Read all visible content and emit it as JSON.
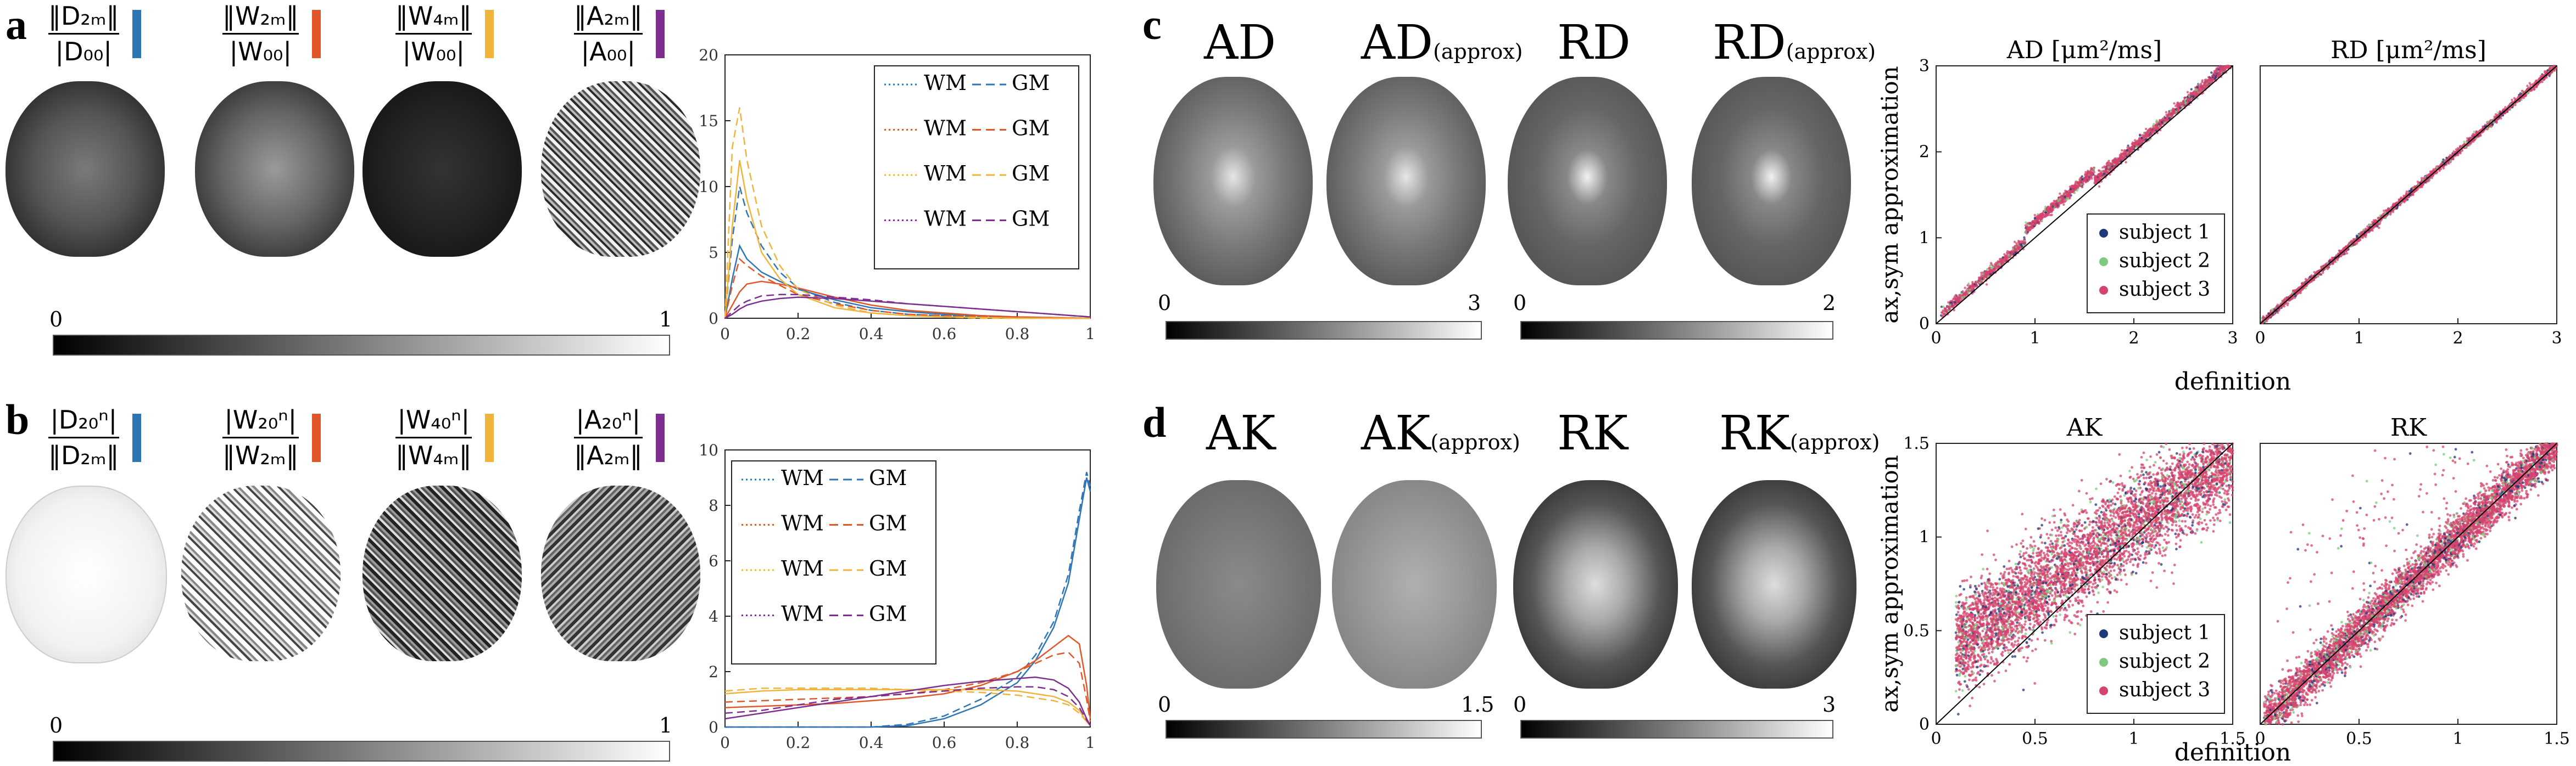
{
  "panels": {
    "a": {
      "label": "a",
      "titles": [
        {
          "num": "‖D₂ₘ‖",
          "den": "|D₀₀|",
          "color": "#2e75b6"
        },
        {
          "num": "‖W₂ₘ‖",
          "den": "|W₀₀|",
          "color": "#e0582a"
        },
        {
          "num": "‖W₄ₘ‖",
          "den": "|W₀₀|",
          "color": "#f0b43c"
        },
        {
          "num": "‖A₂ₘ‖",
          "den": "|A₀₀|",
          "color": "#7d2e8e"
        }
      ],
      "colorbar": {
        "min": "0",
        "max": "1"
      }
    },
    "b": {
      "label": "b",
      "titles": [
        {
          "num": "|D₂₀ⁿ|",
          "den": "‖D₂ₘ‖",
          "color": "#2e75b6"
        },
        {
          "num": "|W₂₀ⁿ|",
          "den": "‖W₂ₘ‖",
          "color": "#e0582a"
        },
        {
          "num": "|W₄₀ⁿ|",
          "den": "‖W₄ₘ‖",
          "color": "#f0b43c"
        },
        {
          "num": "|A₂₀ⁿ|",
          "den": "‖A₂ₘ‖",
          "color": "#7d2e8e"
        }
      ],
      "colorbar": {
        "min": "0",
        "max": "1"
      }
    },
    "c": {
      "label": "c",
      "maps": [
        {
          "title": "AD",
          "sub": ""
        },
        {
          "title": "AD",
          "sub": "(approx)"
        },
        {
          "title": "RD",
          "sub": ""
        },
        {
          "title": "RD",
          "sub": "(approx)"
        }
      ],
      "colorbars": [
        {
          "min": "0",
          "max": "3"
        },
        {
          "min": "0",
          "max": "2"
        }
      ]
    },
    "d": {
      "label": "d",
      "maps": [
        {
          "title": "AK",
          "sub": ""
        },
        {
          "title": "AK",
          "sub": "(approx)"
        },
        {
          "title": "RK",
          "sub": ""
        },
        {
          "title": "RK",
          "sub": "(approx)"
        }
      ],
      "colorbars": [
        {
          "min": "0",
          "max": "1.5"
        },
        {
          "min": "0",
          "max": "3"
        }
      ]
    }
  },
  "colors": {
    "blue": "#2e75b6",
    "red": "#e0582a",
    "yellow": "#f0b43c",
    "purple": "#7d2e8e",
    "subject1": "#1f3a78",
    "subject2": "#7fc97f",
    "subject3": "#d6436e"
  },
  "chart_data": [
    {
      "id": "histA",
      "type": "line",
      "xlim": [
        0,
        1
      ],
      "ylim": [
        0,
        20
      ],
      "xticks": [
        "0",
        "0.2",
        "0.4",
        "0.6",
        "0.8",
        "1"
      ],
      "yticks": [
        "0",
        "5",
        "10",
        "15",
        "20"
      ],
      "legend": {
        "placement": "top-right",
        "wm": "WM",
        "gm": "GM"
      },
      "x": [
        0,
        0.02,
        0.04,
        0.06,
        0.1,
        0.15,
        0.2,
        0.3,
        0.4,
        0.5,
        0.6,
        0.7,
        0.8,
        0.9,
        1.0
      ],
      "series": [
        {
          "color": "#2e75b6",
          "style": "WM",
          "values": [
            0,
            3,
            5.5,
            4.5,
            3.5,
            2.8,
            2.2,
            1.4,
            0.8,
            0.5,
            0.3,
            0.2,
            0.1,
            0.05,
            0
          ]
        },
        {
          "color": "#2e75b6",
          "style": "GM",
          "values": [
            0,
            6,
            10,
            8,
            5.5,
            3.5,
            2.3,
            1.2,
            0.6,
            0.3,
            0.2,
            0.1,
            0.05,
            0,
            0
          ]
        },
        {
          "color": "#e0582a",
          "style": "WM",
          "values": [
            0,
            1,
            2,
            2.6,
            2.8,
            2.6,
            2.3,
            1.6,
            1.0,
            0.6,
            0.4,
            0.2,
            0.1,
            0.05,
            0
          ]
        },
        {
          "color": "#e0582a",
          "style": "GM",
          "values": [
            0,
            2.5,
            4.5,
            4,
            3.2,
            2.5,
            1.8,
            1.1,
            0.6,
            0.3,
            0.2,
            0.1,
            0.05,
            0,
            0
          ]
        },
        {
          "color": "#f0b43c",
          "style": "WM",
          "values": [
            0,
            7,
            12,
            9,
            5,
            3,
            1.8,
            0.8,
            0.4,
            0.2,
            0.1,
            0.05,
            0,
            0,
            0
          ]
        },
        {
          "color": "#f0b43c",
          "style": "GM",
          "values": [
            0,
            13,
            16,
            12,
            7,
            4,
            2.2,
            1,
            0.4,
            0.2,
            0.1,
            0,
            0,
            0,
            0
          ]
        },
        {
          "color": "#7d2e8e",
          "style": "WM",
          "values": [
            0,
            0.3,
            0.7,
            1.0,
            1.3,
            1.5,
            1.6,
            1.5,
            1.3,
            1.1,
            0.9,
            0.7,
            0.5,
            0.3,
            0.1
          ]
        },
        {
          "color": "#7d2e8e",
          "style": "GM",
          "values": [
            0,
            0.5,
            1.0,
            1.3,
            1.7,
            1.8,
            1.8,
            1.6,
            1.4,
            1.1,
            0.9,
            0.7,
            0.5,
            0.3,
            0.1
          ]
        }
      ]
    },
    {
      "id": "histB",
      "type": "line",
      "xlim": [
        0,
        1
      ],
      "ylim": [
        0,
        10
      ],
      "xticks": [
        "0",
        "0.2",
        "0.4",
        "0.6",
        "0.8",
        "1"
      ],
      "yticks": [
        "0",
        "2",
        "4",
        "6",
        "8",
        "10"
      ],
      "legend": {
        "placement": "top-left",
        "wm": "WM",
        "gm": "GM"
      },
      "x": [
        0,
        0.1,
        0.2,
        0.3,
        0.4,
        0.5,
        0.6,
        0.7,
        0.8,
        0.85,
        0.9,
        0.94,
        0.97,
        0.99,
        1.0
      ],
      "series": [
        {
          "color": "#2e75b6",
          "style": "WM",
          "values": [
            0,
            0,
            0,
            0,
            0,
            0.05,
            0.3,
            0.8,
            1.6,
            2.4,
            3.6,
            5.2,
            7.5,
            9.0,
            8.5
          ]
        },
        {
          "color": "#2e75b6",
          "style": "GM",
          "values": [
            0,
            0,
            0,
            0,
            0,
            0.1,
            0.4,
            1.0,
            1.8,
            2.6,
            3.8,
            5.5,
            7.8,
            9.2,
            8.7
          ]
        },
        {
          "color": "#e0582a",
          "style": "WM",
          "values": [
            0.7,
            0.75,
            0.8,
            0.85,
            0.95,
            1.05,
            1.2,
            1.5,
            2.0,
            2.4,
            2.9,
            3.3,
            3.0,
            1.5,
            0.3
          ]
        },
        {
          "color": "#e0582a",
          "style": "GM",
          "values": [
            0.9,
            0.95,
            1.0,
            1.05,
            1.1,
            1.2,
            1.35,
            1.6,
            2.0,
            2.3,
            2.6,
            2.7,
            2.3,
            1.0,
            0.2
          ]
        },
        {
          "color": "#f0b43c",
          "style": "WM",
          "values": [
            1.2,
            1.3,
            1.35,
            1.35,
            1.35,
            1.35,
            1.35,
            1.35,
            1.3,
            1.2,
            1.1,
            0.9,
            0.6,
            0.2,
            0.05
          ]
        },
        {
          "color": "#f0b43c",
          "style": "GM",
          "values": [
            1.3,
            1.4,
            1.4,
            1.4,
            1.4,
            1.35,
            1.3,
            1.25,
            1.15,
            1.05,
            0.95,
            0.8,
            0.5,
            0.2,
            0.05
          ]
        },
        {
          "color": "#7d2e8e",
          "style": "WM",
          "values": [
            0.3,
            0.5,
            0.7,
            0.9,
            1.1,
            1.3,
            1.5,
            1.65,
            1.75,
            1.8,
            1.7,
            1.4,
            0.9,
            0.3,
            0.05
          ]
        },
        {
          "color": "#7d2e8e",
          "style": "GM",
          "values": [
            0.5,
            0.6,
            0.8,
            1.0,
            1.1,
            1.2,
            1.3,
            1.4,
            1.45,
            1.45,
            1.35,
            1.1,
            0.7,
            0.25,
            0.05
          ]
        }
      ]
    },
    {
      "id": "scatterAD",
      "type": "scatter",
      "title": "AD [μm²/ms]",
      "xlim": [
        0,
        3
      ],
      "ylim": [
        0,
        3
      ],
      "xticks": [
        "0",
        "1",
        "2",
        "3"
      ],
      "yticks": [
        "0",
        "1",
        "2",
        "3"
      ],
      "xlabel": "definition",
      "ylabel": "ax,sym approximation",
      "legend": [
        "subject 1",
        "subject 2",
        "subject 3"
      ],
      "legend_placement": "bottom-right"
    },
    {
      "id": "scatterRD",
      "type": "scatter",
      "title": "RD [μm²/ms]",
      "xlim": [
        0,
        3
      ],
      "ylim": [
        0,
        3
      ],
      "xticks": [
        "0",
        "1",
        "2",
        "3"
      ],
      "yticks": []
    },
    {
      "id": "scatterAK",
      "type": "scatter",
      "title": "AK",
      "xlim": [
        0,
        1.5
      ],
      "ylim": [
        0,
        1.5
      ],
      "xticks": [
        "0",
        "0.5",
        "1",
        "1.5"
      ],
      "yticks": [
        "0",
        "0.5",
        "1",
        "1.5"
      ],
      "xlabel": "definition",
      "ylabel": "ax,sym approximation",
      "legend": [
        "subject 1",
        "subject 2",
        "subject 3"
      ],
      "legend_placement": "bottom-right"
    },
    {
      "id": "scatterRK",
      "type": "scatter",
      "title": "RK",
      "xlim": [
        0,
        1.5
      ],
      "ylim": [
        0,
        1.5
      ],
      "xticks": [
        "0",
        "0.5",
        "1",
        "1.5"
      ],
      "yticks": []
    }
  ]
}
